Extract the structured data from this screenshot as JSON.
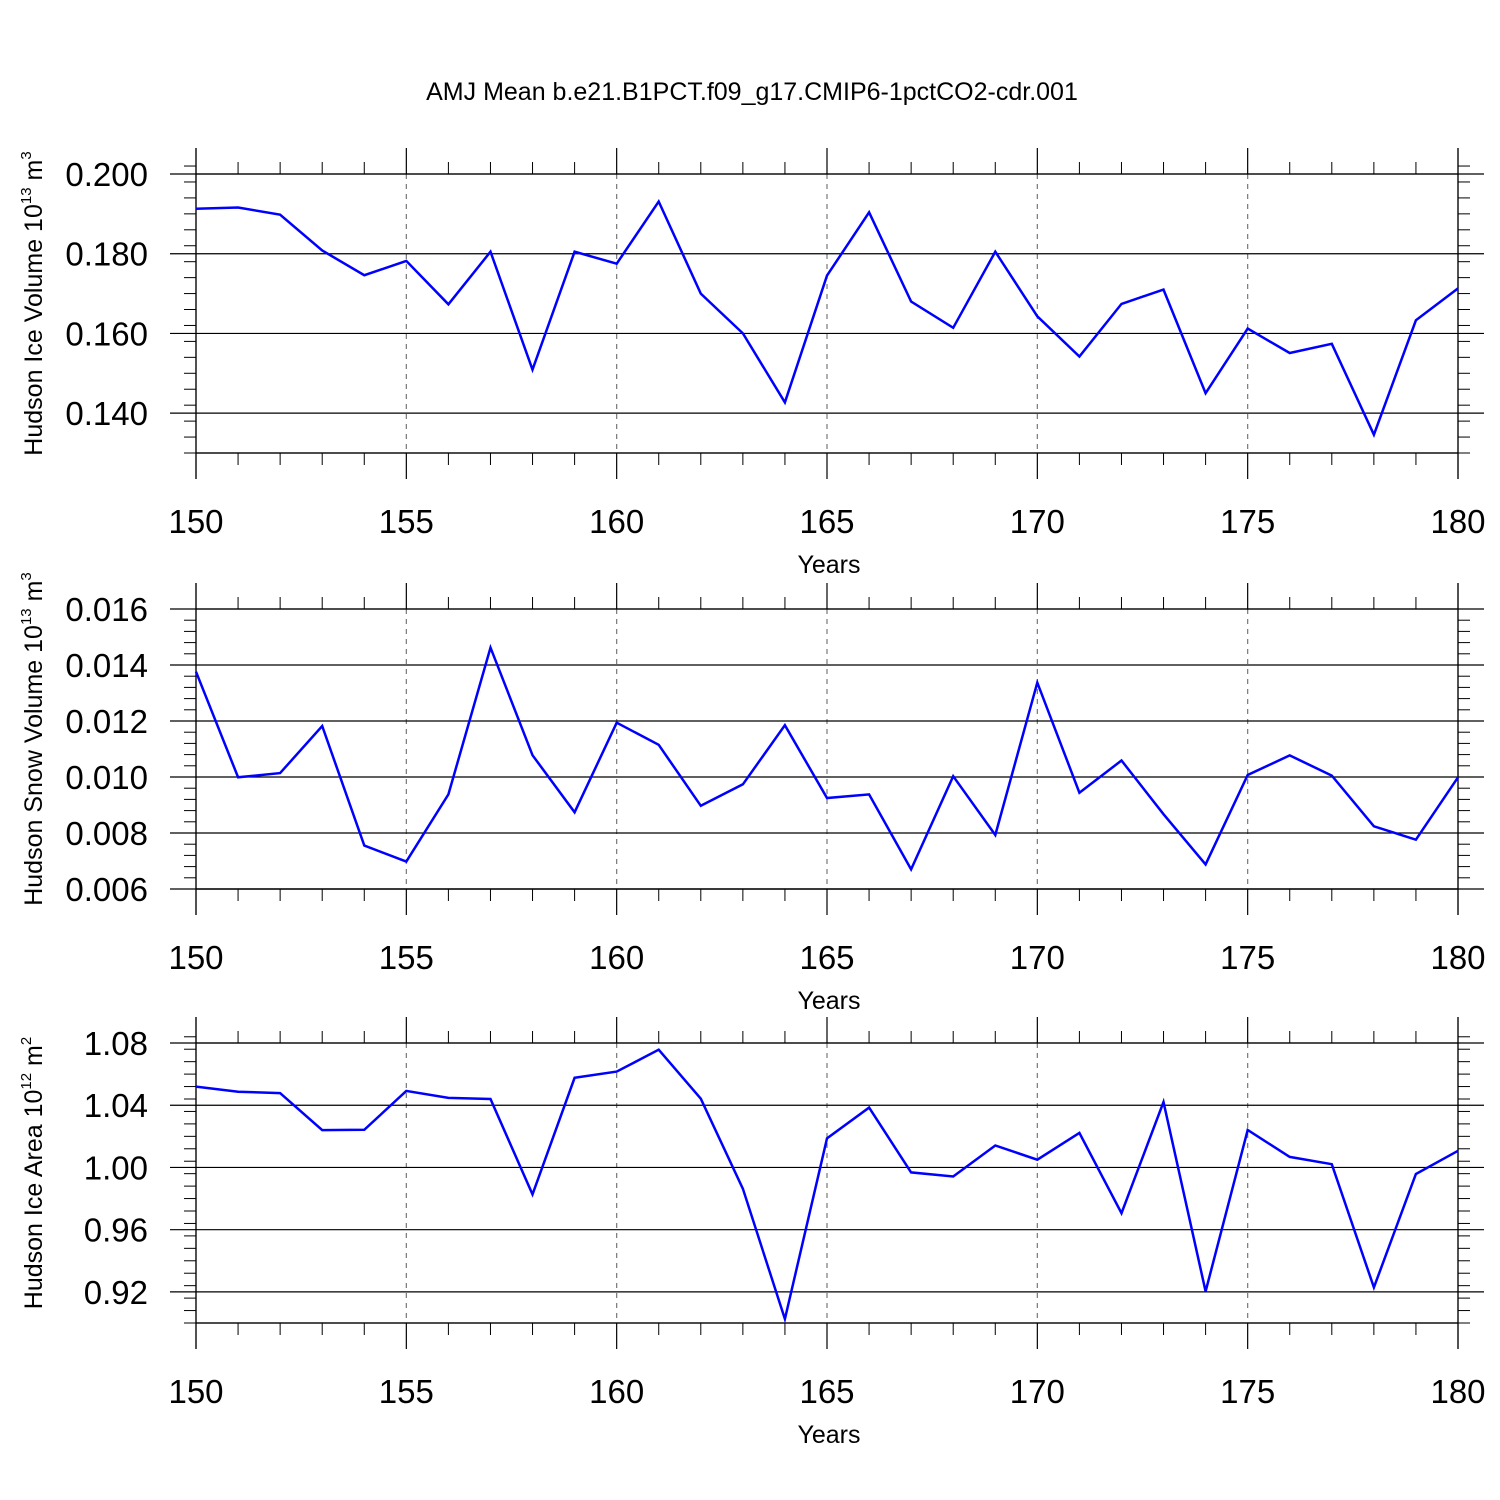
{
  "figure": {
    "title": "AMJ Mean b.e21.B1PCT.f09_g17.CMIP6-1pctCO2-cdr.001"
  },
  "chart_data": [
    {
      "type": "line",
      "title": "AMJ Mean b.e21.B1PCT.f09_g17.CMIP6-1pctCO2-cdr.001",
      "xlabel": "Years",
      "ylabel": {
        "main": "Hudson Ice Volume 10",
        "exp": "13",
        "unit": " m",
        "unit_exp": "3"
      },
      "xlim": [
        150,
        180
      ],
      "ylim": [
        0.13,
        0.2
      ],
      "xticks": [
        150,
        155,
        160,
        165,
        170,
        175,
        180
      ],
      "xtick_labels": [
        "150",
        "155",
        "160",
        "165",
        "170",
        "175",
        "180"
      ],
      "yticks": [
        0.14,
        0.16,
        0.18,
        0.2
      ],
      "ytick_labels": [
        "0.140",
        "0.160",
        "0.180",
        "0.200"
      ],
      "y_minor_step": 0.004,
      "grid": "dashed vertical at major x ticks",
      "line_color": "#0000ff",
      "x": [
        150,
        151,
        152,
        153,
        154,
        155,
        156,
        157,
        158,
        159,
        160,
        161,
        162,
        163,
        164,
        165,
        166,
        167,
        168,
        169,
        170,
        171,
        172,
        173,
        174,
        175,
        176,
        177,
        178,
        179,
        180
      ],
      "values": [
        0.1913,
        0.1916,
        0.1898,
        0.1808,
        0.1746,
        0.1782,
        0.1673,
        0.1805,
        0.1509,
        0.1805,
        0.1775,
        0.1931,
        0.17,
        0.16,
        0.1427,
        0.1745,
        0.1904,
        0.168,
        0.1614,
        0.1805,
        0.1643,
        0.1542,
        0.1674,
        0.171,
        0.145,
        0.1612,
        0.1551,
        0.1574,
        0.1346,
        0.1633,
        0.1713
      ]
    },
    {
      "type": "line",
      "xlabel": "Years",
      "ylabel": {
        "main": "Hudson Snow Volume 10",
        "exp": "13",
        "unit": " m",
        "unit_exp": "3"
      },
      "xlim": [
        150,
        180
      ],
      "ylim": [
        0.006,
        0.016
      ],
      "xticks": [
        150,
        155,
        160,
        165,
        170,
        175,
        180
      ],
      "xtick_labels": [
        "150",
        "155",
        "160",
        "165",
        "170",
        "175",
        "180"
      ],
      "yticks": [
        0.006,
        0.008,
        0.01,
        0.012,
        0.014,
        0.016
      ],
      "ytick_labels": [
        "0.006",
        "0.008",
        "0.010",
        "0.012",
        "0.014",
        "0.016"
      ],
      "y_minor_step": 0.0004,
      "grid": "dashed vertical at major x ticks",
      "line_color": "#0000ff",
      "x": [
        150,
        151,
        152,
        153,
        154,
        155,
        156,
        157,
        158,
        159,
        160,
        161,
        162,
        163,
        164,
        165,
        166,
        167,
        168,
        169,
        170,
        171,
        172,
        173,
        174,
        175,
        176,
        177,
        178,
        179,
        180
      ],
      "values": [
        0.01376,
        0.00999,
        0.01014,
        0.01182,
        0.00755,
        0.00698,
        0.00938,
        0.01462,
        0.01078,
        0.00874,
        0.01194,
        0.01115,
        0.00897,
        0.00974,
        0.01185,
        0.00925,
        0.00938,
        0.0067,
        0.01003,
        0.00793,
        0.01337,
        0.00944,
        0.01059,
        0.00867,
        0.00688,
        0.01007,
        0.01077,
        0.01005,
        0.00824,
        0.00776,
        0.00999
      ]
    },
    {
      "type": "line",
      "xlabel": "Years",
      "ylabel": {
        "main": "Hudson Ice Area 10",
        "exp": "12",
        "unit": " m",
        "unit_exp": "2"
      },
      "xlim": [
        150,
        180
      ],
      "ylim": [
        0.9,
        1.08
      ],
      "xticks": [
        150,
        155,
        160,
        165,
        170,
        175,
        180
      ],
      "xtick_labels": [
        "150",
        "155",
        "160",
        "165",
        "170",
        "175",
        "180"
      ],
      "yticks": [
        0.92,
        0.96,
        1.0,
        1.04,
        1.08
      ],
      "ytick_labels": [
        "0.92",
        "0.96",
        "1.00",
        "1.04",
        "1.08"
      ],
      "y_minor_step": 0.008,
      "grid": "dashed vertical at major x ticks",
      "line_color": "#0000ff",
      "x": [
        150,
        151,
        152,
        153,
        154,
        155,
        156,
        157,
        158,
        159,
        160,
        161,
        162,
        163,
        164,
        165,
        166,
        167,
        168,
        169,
        170,
        171,
        172,
        173,
        174,
        175,
        176,
        177,
        178,
        179,
        180
      ],
      "values": [
        1.052,
        1.0487,
        1.0478,
        1.024,
        1.0242,
        1.0492,
        1.0447,
        1.044,
        0.9827,
        1.0576,
        1.0616,
        1.0757,
        1.0442,
        0.9863,
        0.9026,
        1.0187,
        1.0385,
        0.9968,
        0.9942,
        1.0141,
        1.005,
        1.0222,
        0.9706,
        1.0421,
        0.9203,
        1.0241,
        1.0068,
        1.0021,
        0.9229,
        0.9958,
        1.0107
      ]
    }
  ]
}
